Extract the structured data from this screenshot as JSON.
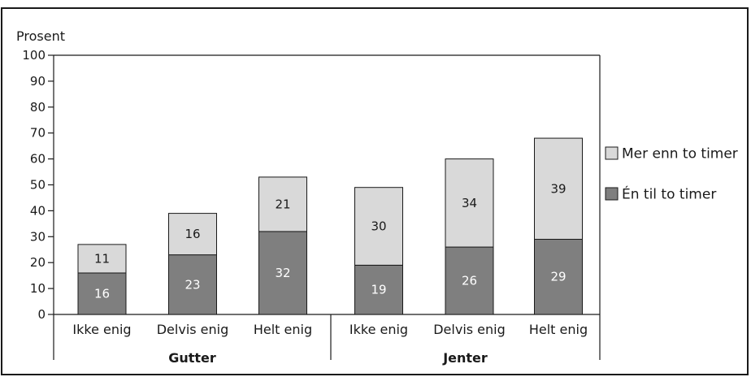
{
  "chart_data": {
    "type": "bar",
    "stacked": true,
    "ylabel": "Prosent",
    "ylim": [
      0,
      100
    ],
    "yticks": [
      0,
      10,
      20,
      30,
      40,
      50,
      60,
      70,
      80,
      90,
      100
    ],
    "grid": false,
    "categories": [
      "Ikke enig",
      "Delvis enig",
      "Helt enig",
      "Ikke enig",
      "Delvis enig",
      "Helt enig"
    ],
    "groups": [
      {
        "name": "Gutter",
        "count": 3
      },
      {
        "name": "Jenter",
        "count": 3
      }
    ],
    "series": [
      {
        "name": "Én til to timer",
        "color": "#7f7f7f",
        "label_color": "#ffffff",
        "values": [
          16,
          23,
          32,
          19,
          26,
          29
        ]
      },
      {
        "name": "Mer enn to timer",
        "color": "#d9d9d9",
        "label_color": "#1a1a1a",
        "values": [
          11,
          16,
          21,
          30,
          34,
          39
        ]
      }
    ],
    "legend_position": "right"
  }
}
